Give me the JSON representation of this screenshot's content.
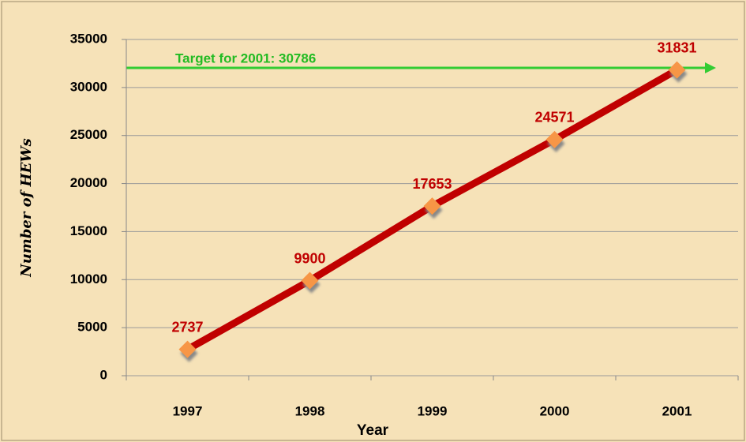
{
  "chart_data": {
    "type": "line",
    "x_label": "Year",
    "y_label": "Number of HEWs",
    "annotation": "Target for 2001: 30786",
    "categories": [
      "1997",
      "1998",
      "1999",
      "2000",
      "2001"
    ],
    "series": [
      {
        "name": "HEWs",
        "color": "#c00000",
        "marker_color": "#f79646",
        "values": [
          2737,
          9900,
          17653,
          24571,
          31831
        ]
      }
    ],
    "ylim": [
      0,
      35000
    ],
    "yticks": [
      0,
      5000,
      10000,
      15000,
      20000,
      25000,
      30000,
      35000
    ],
    "grid": true
  }
}
